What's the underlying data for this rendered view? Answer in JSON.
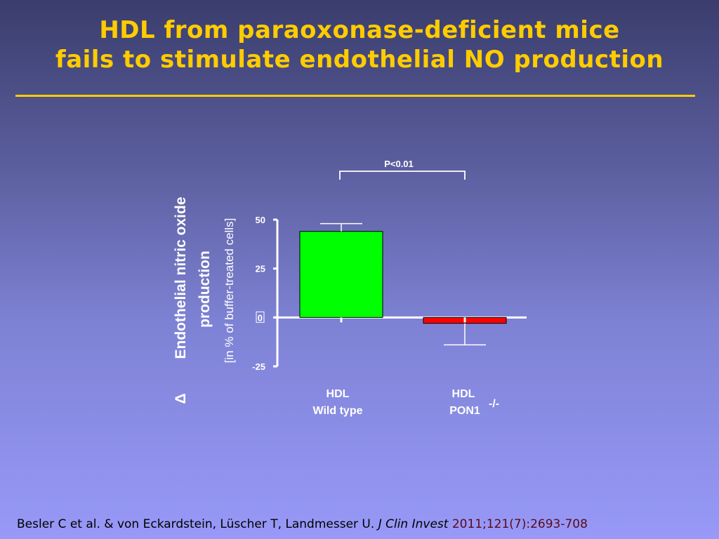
{
  "slide": {
    "title_line1": "HDL from paraoxonase-deficient mice",
    "title_line2": "fails to stimulate endothelial NO production",
    "accent_color": "#ffcc00"
  },
  "citation": {
    "authors": "Besler C et al. & von Eckardstein, Lüscher T, Landmesser U.",
    "journal": "J Clin Invest",
    "volume": "2011;121(7):2693-708"
  },
  "chart_data": {
    "type": "bar",
    "categories": [
      {
        "line1": "HDL",
        "line2": "Wild type",
        "superscript": ""
      },
      {
        "line1": "HDL",
        "line2": "PON1",
        "superscript": "-/-"
      }
    ],
    "values": [
      44,
      -3
    ],
    "error_values": [
      48,
      -14
    ],
    "colors": [
      "#00ff00",
      "#ff0000"
    ],
    "ylabel_symbol": "Δ",
    "ylabel_line1": "Endothelial nitric oxide",
    "ylabel_line2": "production",
    "ylabel_sub": "[in % of buffer-treated cells]",
    "ylim": [
      -25,
      50
    ],
    "yticks": [
      {
        "value": 50,
        "label": "50"
      },
      {
        "value": 25,
        "label": "25"
      },
      {
        "value": 0,
        "label": "0"
      },
      {
        "value": -25,
        "label": "-25"
      }
    ],
    "significance": {
      "label": "P<0.01",
      "between": [
        0,
        1
      ]
    }
  }
}
